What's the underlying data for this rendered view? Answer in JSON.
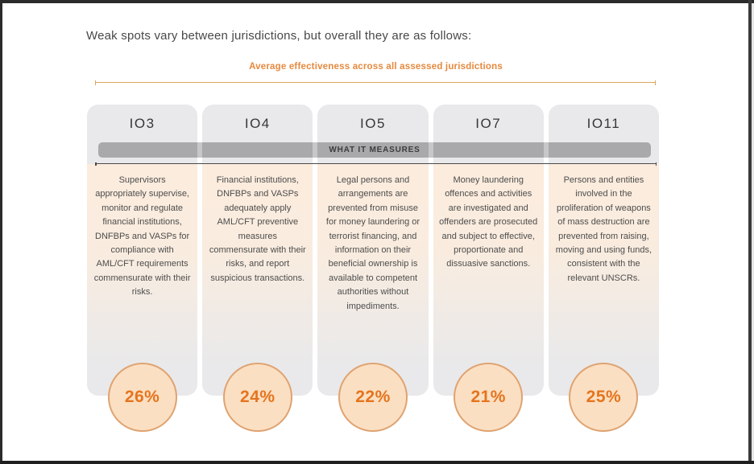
{
  "page": {
    "title": "Weak spots vary between jurisdictions, but overall they are as follows:",
    "band_label": "WHAT IT MEASURES"
  },
  "colors": {
    "accent_orange": "#e6893d",
    "percent_text": "#e5741e",
    "circle_fill": "#fbdfc2",
    "circle_border": "#dfa371",
    "card_gray": "#e9e9eb",
    "band_gray": "#a9a9ab",
    "rule_tan": "#d8a65e",
    "frame_black": "#2b2b2b"
  },
  "chart_data": {
    "type": "table",
    "title": "Average effectiveness across all assessed jurisdictions",
    "row_header": "WHAT IT MEASURES",
    "categories": [
      "IO3",
      "IO4",
      "IO5",
      "IO7",
      "IO11"
    ],
    "values": [
      26,
      24,
      22,
      21,
      25
    ],
    "values_display": [
      "26%",
      "24%",
      "22%",
      "21%",
      "25%"
    ],
    "value_unit": "percent",
    "descriptions": [
      "Supervisors appropriately supervise, monitor and regulate financial institutions, DNFBPs and VASPs for compliance with AML/CFT requirements commensurate with their risks.",
      "Financial institutions, DNFBPs and VASPs adequately apply AML/CFT preventive measures commensurate with their risks, and report suspicious transactions.",
      "Legal persons and arrangements are prevented from misuse for money laundering or terrorist financing, and information on their beneficial ownership is available to competent authorities without impediments.",
      "Money laundering offences and activities are investigated and offenders are prosecuted and subject to effective, proportionate and dissuasive sanctions.",
      "Persons and entities involved in the proliferation of weapons of mass destruction are prevented from raising, moving and using funds, consistent with the relevant UNSCRs."
    ],
    "legend_position": "none",
    "grid": false
  }
}
